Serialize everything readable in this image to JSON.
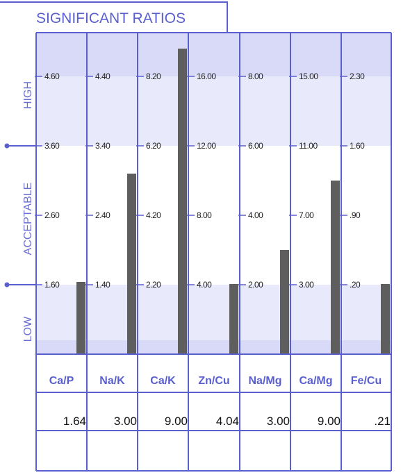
{
  "chart_data": {
    "type": "bar",
    "title": "SIGNIFICANT RATIOS",
    "zones": [
      "HIGH",
      "ACCEPTABLE",
      "LOW"
    ],
    "colors": {
      "frame": "#5a5fcf",
      "high_band_dark": "#d8daf7",
      "high_band_light": "#e8e9fb",
      "low_band": "#e8e9fb",
      "low_band_dark": "#d8daf7",
      "bar": "#5e5e5e"
    },
    "grid_index": [
      0,
      1,
      2,
      3
    ],
    "bar_fraction_scale": "0 = bottom of LOW band, 1 = level '1.60' line, 3 = level '3.60' line, 4 = level '4.60' line",
    "categories": [
      {
        "ratio": "Ca/P",
        "ticks": [
          "4.60",
          "3.60",
          "2.60",
          "1.60"
        ],
        "value": "1.64",
        "level": 1.04
      },
      {
        "ratio": "Na/K",
        "ticks": [
          "4.40",
          "3.40",
          "2.40",
          "1.40"
        ],
        "value": "3.00",
        "level": 2.6
      },
      {
        "ratio": "Ca/K",
        "ticks": [
          "8.20",
          "6.20",
          "4.20",
          "2.20"
        ],
        "value": "9.00",
        "level": 4.4
      },
      {
        "ratio": "Zn/Cu",
        "ticks": [
          "16.00",
          "12.00",
          "8.00",
          "4.00"
        ],
        "value": "4.04",
        "level": 1.01
      },
      {
        "ratio": "Na/Mg",
        "ticks": [
          "8.00",
          "6.00",
          "4.00",
          "2.00"
        ],
        "value": "3.00",
        "level": 1.5
      },
      {
        "ratio": "Ca/Mg",
        "ticks": [
          "15.00",
          "11.00",
          "7.00",
          "3.00"
        ],
        "value": "9.00",
        "level": 2.5
      },
      {
        "ratio": "Fe/Cu",
        "ticks": [
          "2.30",
          "1.60",
          ".90",
          ".20"
        ],
        "value": ".21",
        "level": 1.01
      }
    ]
  }
}
